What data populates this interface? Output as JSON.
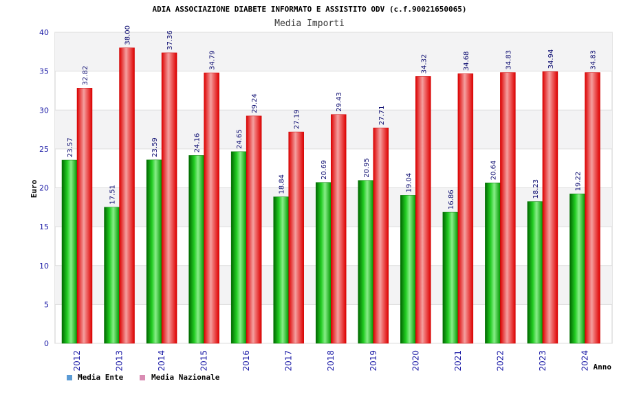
{
  "chart_data": {
    "type": "bar",
    "title": "ADIA ASSOCIAZIONE DIABETE INFORMATO E ASSISTITO ODV (c.f.90021650065)",
    "subtitle": "Media Importi",
    "xlabel": "Anno",
    "ylabel": "Euro",
    "ylim": [
      0,
      40
    ],
    "yticks": [
      "0",
      "5",
      "10",
      "15",
      "20",
      "25",
      "30",
      "35",
      "40"
    ],
    "grid": "horizontal bands",
    "legend_position": "bottom-left",
    "categories": [
      "2012",
      "2013",
      "2014",
      "2015",
      "2016",
      "2017",
      "2018",
      "2019",
      "2020",
      "2021",
      "2022",
      "2023",
      "2024"
    ],
    "series": [
      {
        "name": "Media Ente",
        "color": "#00aa00",
        "legend_color": "#5b9bd5",
        "values": [
          23.57,
          17.51,
          23.59,
          24.16,
          24.65,
          18.84,
          20.69,
          20.95,
          19.04,
          16.86,
          20.64,
          18.23,
          19.22
        ],
        "labels": [
          "23.57",
          "17.51",
          "23.59",
          "24.16",
          "24.65",
          "18.84",
          "20.69",
          "20.95",
          "19.04",
          "16.86",
          "20.64",
          "18.23",
          "19.22"
        ]
      },
      {
        "name": "Media Nazionale",
        "color": "#ee0000",
        "legend_color": "#d98cb3",
        "values": [
          32.82,
          38.0,
          37.36,
          34.79,
          29.24,
          27.19,
          29.43,
          27.71,
          34.32,
          34.68,
          34.83,
          34.94,
          34.83
        ],
        "labels": [
          "32.82",
          "38.00",
          "37.36",
          "34.79",
          "29.24",
          "27.19",
          "29.43",
          "27.71",
          "34.32",
          "34.68",
          "34.83",
          "34.94",
          "34.83"
        ]
      }
    ]
  }
}
